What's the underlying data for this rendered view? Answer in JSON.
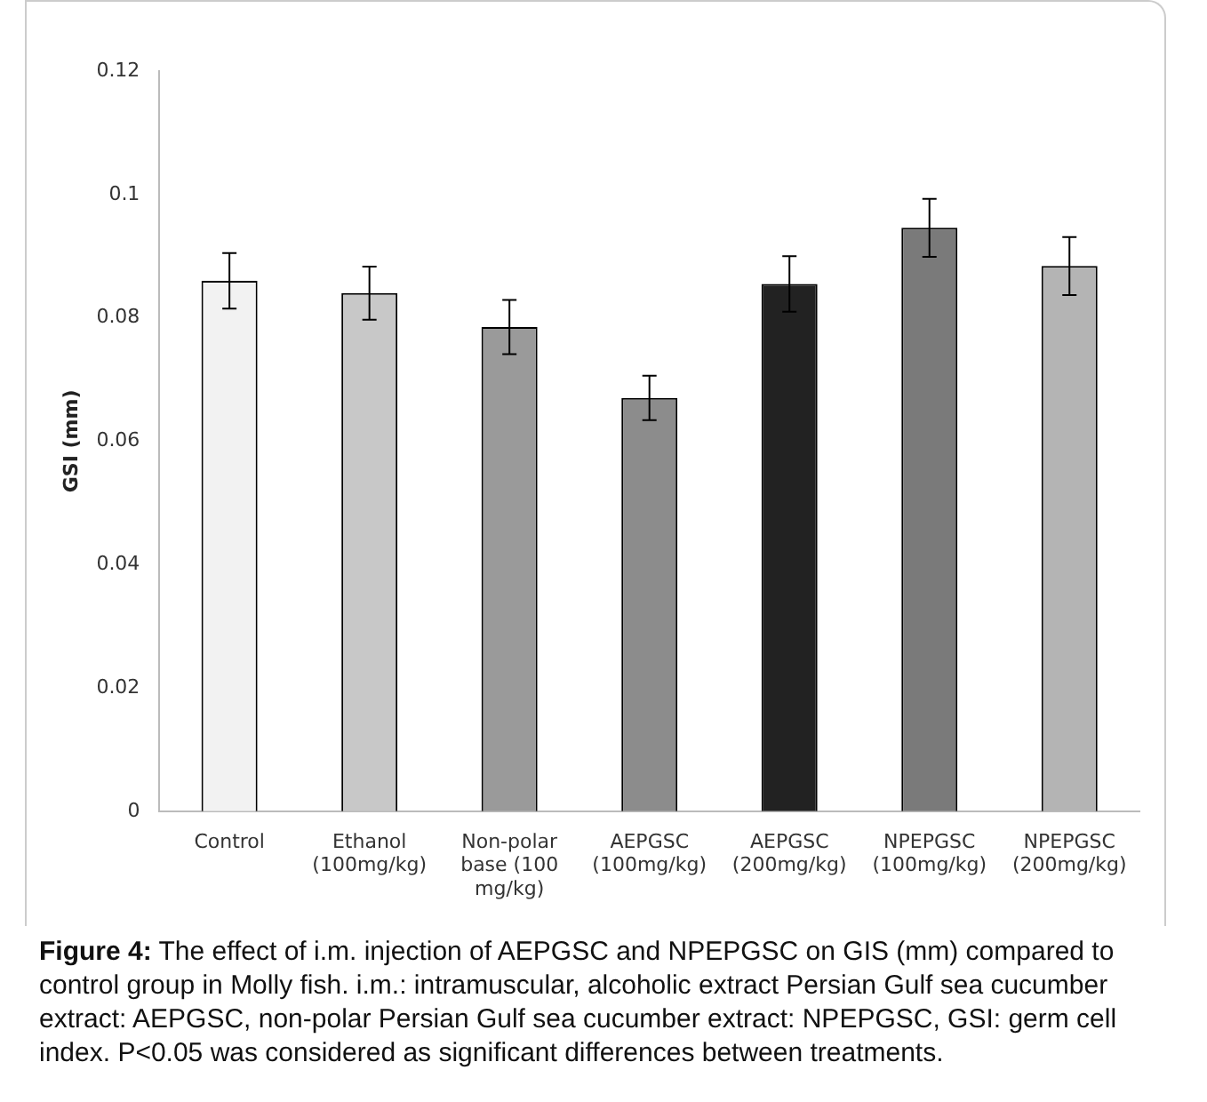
{
  "chart_data": {
    "type": "bar",
    "ylabel": "GSI (mm)",
    "categories": [
      "Control",
      "Ethanol (100mg/kg)",
      "Non-polar base (100 mg/kg)",
      "AEPGSC (100mg/kg)",
      "AEPGSC (200mg/kg)",
      "NPEPGSC (100mg/kg)",
      "NPEPGSC (200mg/kg)"
    ],
    "values": [
      0.086,
      0.084,
      0.0785,
      0.067,
      0.0855,
      0.0946,
      0.0884
    ],
    "errors": [
      0.0045,
      0.0043,
      0.0044,
      0.0036,
      0.0045,
      0.0047,
      0.0047
    ],
    "colors": [
      "#f2f2f2",
      "#c8c8c8",
      "#9a9a9a",
      "#8c8c8c",
      "#222222",
      "#7a7a7a",
      "#b4b4b4"
    ],
    "ylim": [
      0,
      0.12
    ],
    "yticks": [
      0,
      0.02,
      0.04,
      0.06,
      0.08,
      0.1,
      0.12
    ],
    "grid": false,
    "legend": false,
    "annotations": [
      "Figure 4: The effect of i.m. injection of AEPGSC and NPEPGSC on GIS (mm) compared to control group in Molly fish. i.m.: intramuscular, alcoholic extract Persian Gulf sea cucumber extract: AEPGSC, non-polar Persian Gulf sea cucumber extract: NPEPGSC, GSI: germ cell index. P<0.05 was considered as significant differences between treatments."
    ]
  }
}
